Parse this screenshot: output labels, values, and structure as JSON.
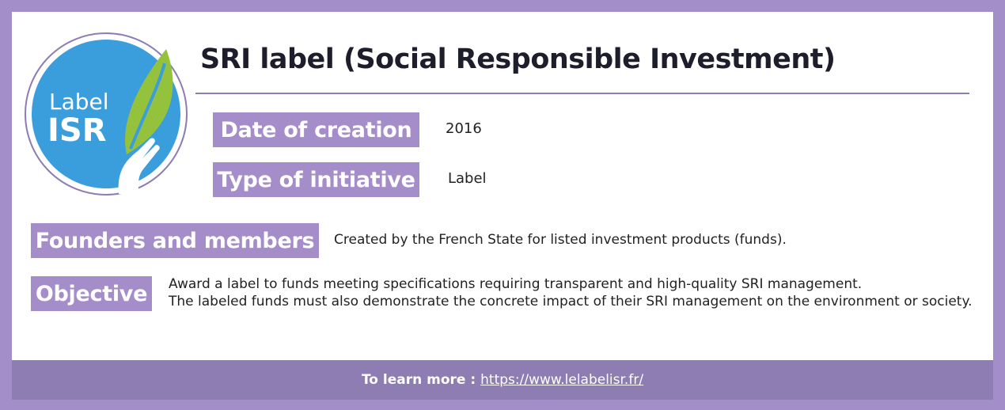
{
  "title": "SRI label (Social Responsible Investment)",
  "logo": {
    "line1": "Label",
    "line2": "ISR"
  },
  "fields": {
    "date_label": "Date of creation",
    "date_value": "2016",
    "type_label": "Type of initiative",
    "type_value": "Label",
    "founders_label": "Founders and members",
    "founders_value": "Created by the French State for listed investment products (funds).",
    "objective_label": "Objective",
    "objective_line1": "Award a label to funds meeting specifications requiring transparent and high-quality SRI management.",
    "objective_line2": "The labeled funds must also demonstrate the concrete impact of their SRI management on the environment or society."
  },
  "footer": {
    "label": "To learn more :",
    "link": "https://www.lelabelisr.fr/"
  },
  "colors": {
    "frame": "#a38ec9",
    "footer": "#8e7db3",
    "logo_blue": "#3a9ddc",
    "leaf_green": "#95c23d"
  }
}
